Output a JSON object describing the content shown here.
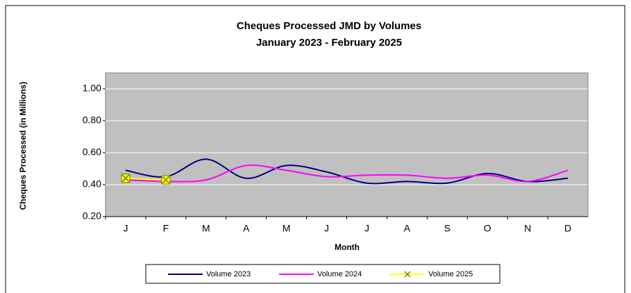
{
  "chart_data": {
    "type": "line",
    "title": "Cheques Processed JMD by Volumes",
    "subtitle": "January 2023 - February 2025",
    "x_label": "Month",
    "y_label": "Cheques Processed (in Millions)",
    "categories": [
      "J",
      "F",
      "M",
      "A",
      "M",
      "J",
      "J",
      "A",
      "S",
      "O",
      "N",
      "D"
    ],
    "series": [
      {
        "name": "Volume 2023",
        "color": "#000080",
        "values": [
          0.49,
          0.45,
          0.56,
          0.44,
          0.52,
          0.48,
          0.41,
          0.42,
          0.41,
          0.47,
          0.42,
          0.44
        ]
      },
      {
        "name": "Volume 2024",
        "color": "#ff00ff",
        "values": [
          0.43,
          0.42,
          0.43,
          0.52,
          0.49,
          0.45,
          0.46,
          0.46,
          0.44,
          0.46,
          0.42,
          0.49
        ]
      },
      {
        "name": "Volume 2025",
        "color": "#ffff00",
        "values": [
          0.44,
          0.43,
          null,
          null,
          null,
          null,
          null,
          null,
          null,
          null,
          null,
          null
        ]
      }
    ],
    "ylim": [
      0.2,
      1.1
    ],
    "yticks": [
      {
        "value": 0.2,
        "label": "0.20"
      },
      {
        "value": 0.4,
        "label": "0.40"
      },
      {
        "value": 0.6,
        "label": "0.60"
      },
      {
        "value": 0.8,
        "label": "0.80"
      },
      {
        "value": 1,
        "label": "1.00"
      }
    ],
    "grid": true,
    "smooth": true,
    "legend": "bottom"
  }
}
